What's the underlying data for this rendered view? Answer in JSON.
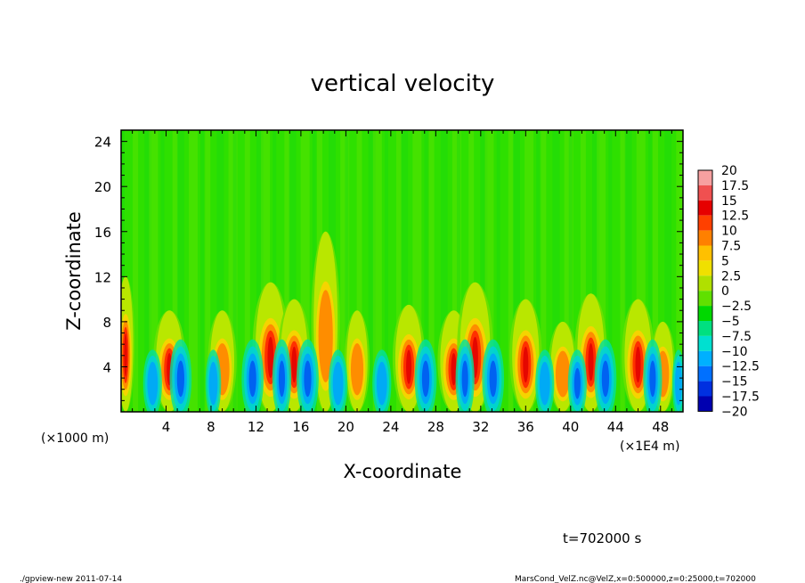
{
  "chart_data": {
    "type": "heatmap",
    "title": "vertical velocity",
    "xlabel": "X-coordinate",
    "ylabel": "Z-coordinate",
    "x_unit_left": "(×1000 m)",
    "x_unit_right": "(×1E4 m)",
    "xlim": [
      0,
      50
    ],
    "ylim": [
      0,
      25
    ],
    "x_ticks": [
      4,
      8,
      12,
      16,
      20,
      24,
      28,
      32,
      36,
      40,
      44,
      48
    ],
    "y_ticks": [
      4,
      8,
      12,
      16,
      20,
      24
    ],
    "colorbar": {
      "levels": [
        20,
        17.5,
        15,
        12.5,
        10,
        7.5,
        5,
        2.5,
        0,
        -2.5,
        -5,
        -7.5,
        -10,
        -12.5,
        -15,
        -17.5,
        -20
      ],
      "colors": [
        "#f7a0a0",
        "#f05050",
        "#e60000",
        "#ff4000",
        "#ff8000",
        "#ffc000",
        "#f0e000",
        "#b0e000",
        "#60e000",
        "#00d800",
        "#00e080",
        "#00e0d0",
        "#00b0ff",
        "#0070ff",
        "#0030e0",
        "#0000b0",
        "#5000a0"
      ]
    },
    "cells": [
      {
        "x": 0.4,
        "w": 0.5,
        "zt": 12,
        "a": 1.0
      },
      {
        "x": 4.3,
        "w": 0.9,
        "zt": 9,
        "a": 1.0
      },
      {
        "x": 9.0,
        "w": 0.8,
        "zt": 9,
        "a": 0.8
      },
      {
        "x": 13.3,
        "w": 1.0,
        "zt": 11.5,
        "a": 1.0
      },
      {
        "x": 15.4,
        "w": 0.9,
        "zt": 10,
        "a": 0.9
      },
      {
        "x": 18.2,
        "w": 0.8,
        "zt": 16,
        "a": 0.7
      },
      {
        "x": 21.0,
        "w": 0.7,
        "zt": 9,
        "a": 0.5
      },
      {
        "x": 25.6,
        "w": 0.9,
        "zt": 9.5,
        "a": 1.0
      },
      {
        "x": 29.6,
        "w": 0.9,
        "zt": 9,
        "a": 1.0
      },
      {
        "x": 31.5,
        "w": 1.0,
        "zt": 11.5,
        "a": 1.0
      },
      {
        "x": 36.0,
        "w": 0.9,
        "zt": 10,
        "a": 1.0
      },
      {
        "x": 39.3,
        "w": 0.8,
        "zt": 8,
        "a": 0.7
      },
      {
        "x": 41.8,
        "w": 0.9,
        "zt": 10.5,
        "a": 1.0
      },
      {
        "x": 46.0,
        "w": 0.9,
        "zt": 10,
        "a": 1.0
      },
      {
        "x": 48.2,
        "w": 0.7,
        "zt": 8,
        "a": 0.6
      }
    ],
    "downdrafts": [
      {
        "x": 2.8,
        "w": 0.6,
        "zt": 6,
        "a": 0.6
      },
      {
        "x": 5.3,
        "w": 0.7,
        "zt": 7,
        "a": 0.9
      },
      {
        "x": 8.2,
        "w": 0.5,
        "zt": 6,
        "a": 0.5
      },
      {
        "x": 11.7,
        "w": 0.7,
        "zt": 7,
        "a": 0.9
      },
      {
        "x": 14.3,
        "w": 0.6,
        "zt": 7,
        "a": 1.0
      },
      {
        "x": 16.6,
        "w": 0.7,
        "zt": 7,
        "a": 0.9
      },
      {
        "x": 19.3,
        "w": 0.6,
        "zt": 6,
        "a": 0.7
      },
      {
        "x": 23.2,
        "w": 0.6,
        "zt": 6,
        "a": 0.6
      },
      {
        "x": 27.1,
        "w": 0.7,
        "zt": 7,
        "a": 0.8
      },
      {
        "x": 30.6,
        "w": 0.6,
        "zt": 7,
        "a": 0.9
      },
      {
        "x": 33.1,
        "w": 0.7,
        "zt": 7,
        "a": 1.0
      },
      {
        "x": 37.7,
        "w": 0.6,
        "zt": 6,
        "a": 0.7
      },
      {
        "x": 40.6,
        "w": 0.6,
        "zt": 6,
        "a": 0.8
      },
      {
        "x": 43.1,
        "w": 0.7,
        "zt": 7,
        "a": 0.9
      },
      {
        "x": 47.3,
        "w": 0.6,
        "zt": 7,
        "a": 0.9
      },
      {
        "x": 49.6,
        "w": 0.4,
        "zt": 6,
        "a": 0.7
      }
    ],
    "time_label": "t=702000 s"
  },
  "footer": {
    "left": "./gpview-new  2011-07-14",
    "right": "MarsCond_VelZ.nc@VelZ,x=0:500000,z=0:25000,t=702000"
  }
}
